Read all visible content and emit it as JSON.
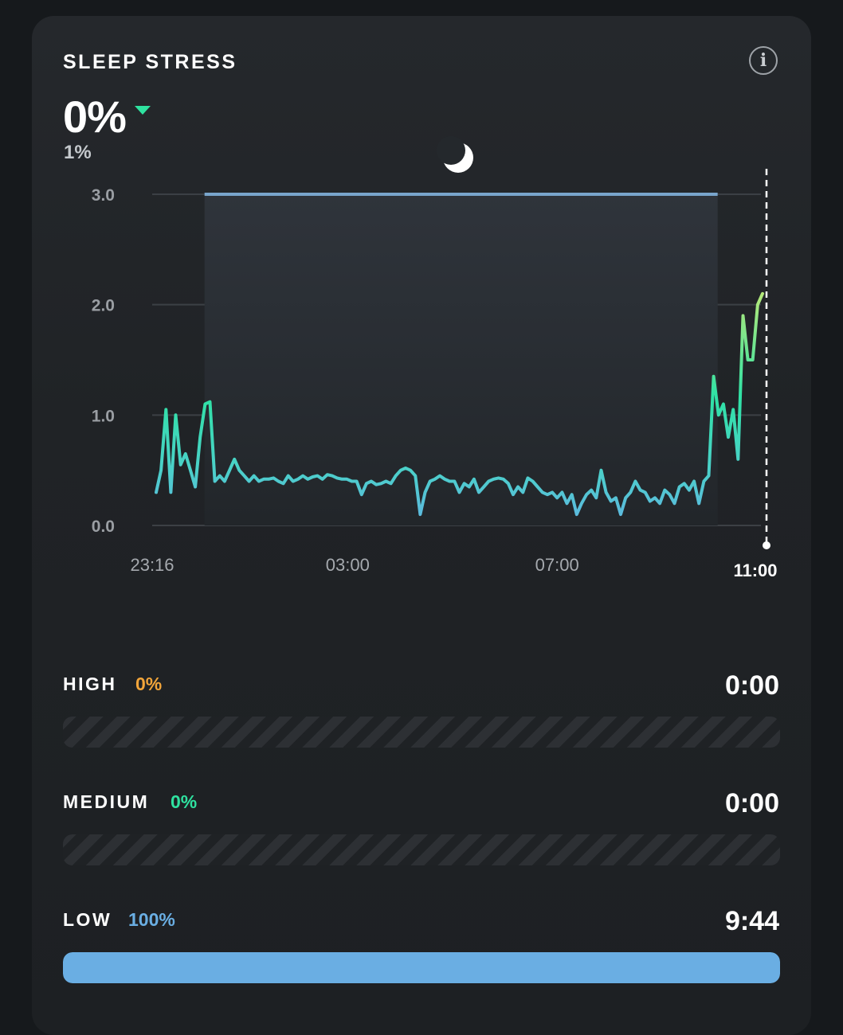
{
  "header": {
    "title": "SLEEP STRESS",
    "value": "0%",
    "previous_value": "1%",
    "trend_icon": "triangle-down-icon",
    "info_icon": "info-icon"
  },
  "colors": {
    "accent_green": "#2fe2a0",
    "high": "#f2a53a",
    "medium": "#2fe2a0",
    "low": "#6aaee3"
  },
  "chart_data": {
    "type": "line",
    "title": "",
    "sleep_icon": "moon-icon",
    "y_ticks": [
      "0.0",
      "1.0",
      "2.0",
      "3.0"
    ],
    "ylim": [
      0,
      3
    ],
    "x_ticks": [
      "23:16",
      "03:00",
      "07:00"
    ],
    "current_time_label": "11:00",
    "xlim": [
      "23:16",
      "11:00"
    ],
    "sleep_window": {
      "start": "00:16",
      "end": "10:04",
      "level": 3.0
    },
    "series": [
      {
        "y": [
          0.3,
          0.5,
          1.05,
          0.3,
          1.0,
          0.55,
          0.65,
          0.5,
          0.35,
          0.8,
          1.1,
          1.12,
          0.4,
          0.45,
          0.4,
          0.5,
          0.6,
          0.5,
          0.45,
          0.4,
          0.45,
          0.4,
          0.42,
          0.42,
          0.43,
          0.4,
          0.38,
          0.45,
          0.4,
          0.42,
          0.45,
          0.42,
          0.44,
          0.45,
          0.42,
          0.46,
          0.45,
          0.43,
          0.42,
          0.42,
          0.4,
          0.4,
          0.28,
          0.38,
          0.4,
          0.37,
          0.38,
          0.4,
          0.38,
          0.45,
          0.5,
          0.52,
          0.5,
          0.45,
          0.1,
          0.3,
          0.4,
          0.42,
          0.45,
          0.42,
          0.4,
          0.4,
          0.3,
          0.38,
          0.35,
          0.42,
          0.3,
          0.35,
          0.4,
          0.42,
          0.43,
          0.42,
          0.38,
          0.28,
          0.35,
          0.3,
          0.43,
          0.4,
          0.35,
          0.3,
          0.28,
          0.3,
          0.25,
          0.3,
          0.2,
          0.28,
          0.1,
          0.2,
          0.28,
          0.32,
          0.25,
          0.5,
          0.3,
          0.22,
          0.25,
          0.1,
          0.25,
          0.3,
          0.4,
          0.32,
          0.3,
          0.22,
          0.25,
          0.2,
          0.32,
          0.28,
          0.2,
          0.35,
          0.38,
          0.32,
          0.4,
          0.2,
          0.4,
          0.45,
          1.35,
          1.0,
          1.1,
          0.8,
          1.05,
          0.6,
          1.9,
          1.5,
          1.5,
          2.0,
          2.1
        ]
      }
    ]
  },
  "categories": [
    {
      "label": "HIGH",
      "percent": "0%",
      "percent_value": 0,
      "duration": "0:00",
      "color": "#f2a53a"
    },
    {
      "label": "MEDIUM",
      "percent": "0%",
      "percent_value": 0,
      "duration": "0:00",
      "color": "#2fe2a0"
    },
    {
      "label": "LOW",
      "percent": "100%",
      "percent_value": 100,
      "duration": "9:44",
      "color": "#6aaee3"
    }
  ]
}
